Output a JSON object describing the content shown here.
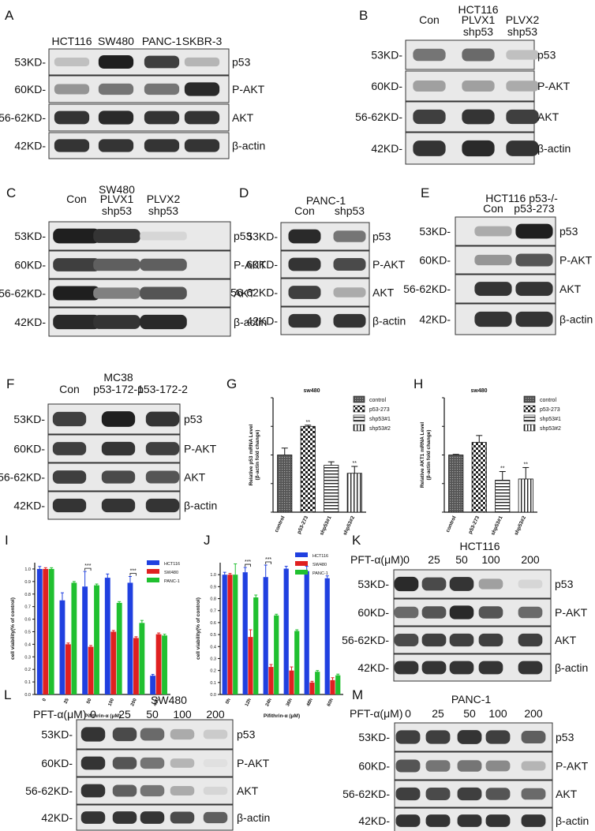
{
  "figure": {
    "panels": {
      "A": {
        "letter": "A",
        "header": [],
        "lanes": [
          "HCT116",
          "SW480",
          "PANC-1",
          "SKBR-3"
        ],
        "rows": [
          {
            "mw": "53KD-",
            "protein": "p53",
            "intensity": [
              0.2,
              0.95,
              0.8,
              0.25
            ]
          },
          {
            "mw": "60KD-",
            "protein": "P-AKT",
            "intensity": [
              0.4,
              0.55,
              0.55,
              0.9
            ]
          },
          {
            "mw": "56-62KD-",
            "protein": "AKT",
            "intensity": [
              0.85,
              0.9,
              0.85,
              0.85
            ]
          },
          {
            "mw": "42KD-",
            "protein": "β-actin",
            "intensity": [
              0.85,
              0.85,
              0.85,
              0.85
            ]
          }
        ]
      },
      "B": {
        "letter": "B",
        "header": [
          "HCT116"
        ],
        "lanes": [
          "Con",
          "PLVX1\nshp53",
          "PLVX2\nshp53"
        ],
        "rows": [
          {
            "mw": "53KD-",
            "protein": "p53",
            "intensity": [
              0.55,
              0.6,
              0.2
            ]
          },
          {
            "mw": "60KD-",
            "protein": "P-AKT",
            "intensity": [
              0.35,
              0.35,
              0.3
            ]
          },
          {
            "mw": "56-62KD-",
            "protein": "AKT",
            "intensity": [
              0.8,
              0.85,
              0.8
            ]
          },
          {
            "mw": "42KD-",
            "protein": "β-actin",
            "intensity": [
              0.85,
              0.9,
              0.85
            ]
          }
        ]
      },
      "C": {
        "letter": "C",
        "header": [
          "SW480"
        ],
        "lanes": [
          "Con",
          "PLVX1\nshp53",
          "PLVX2\nshp53"
        ],
        "rows": [
          {
            "mw": "53KD-",
            "protein": "p53",
            "intensity": [
              0.95,
              0.85,
              0.1
            ]
          },
          {
            "mw": "60KD-",
            "protein": "P-AKT",
            "intensity": [
              0.8,
              0.65,
              0.65
            ]
          },
          {
            "mw": "56-62KD-",
            "protein": "AKT",
            "intensity": [
              0.95,
              0.5,
              0.7
            ]
          },
          {
            "mw": "42KD-",
            "protein": "β-actin",
            "intensity": [
              0.9,
              0.85,
              0.9
            ]
          }
        ]
      },
      "D": {
        "letter": "D",
        "header": [
          "PANC-1"
        ],
        "lanes": [
          "Con",
          "shp53"
        ],
        "rows": [
          {
            "mw": "53KD-",
            "protein": "p53",
            "intensity": [
              0.9,
              0.55
            ]
          },
          {
            "mw": "60KD-",
            "protein": "P-AKT",
            "intensity": [
              0.85,
              0.75
            ]
          },
          {
            "mw": "56-62KD-",
            "protein": "AKT",
            "intensity": [
              0.8,
              0.3
            ]
          },
          {
            "mw": "42KD-",
            "protein": "β-actin",
            "intensity": [
              0.85,
              0.85
            ]
          }
        ]
      },
      "E": {
        "letter": "E",
        "header": [
          "HCT116 p53-/-"
        ],
        "lanes": [
          "Con",
          "p53-273"
        ],
        "rows": [
          {
            "mw": "53KD-",
            "protein": "p53",
            "intensity": [
              0.3,
              0.95
            ]
          },
          {
            "mw": "60KD-",
            "protein": "P-AKT",
            "intensity": [
              0.4,
              0.7
            ]
          },
          {
            "mw": "56-62KD-",
            "protein": "AKT",
            "intensity": [
              0.85,
              0.85
            ]
          },
          {
            "mw": "42KD-",
            "protein": "β-actin",
            "intensity": [
              0.85,
              0.85
            ]
          }
        ]
      },
      "F": {
        "letter": "F",
        "header": [
          "MC38"
        ],
        "lanes": [
          "Con",
          "p53-172-1",
          "p53-172-2"
        ],
        "rows": [
          {
            "mw": "53KD-",
            "protein": "p53",
            "intensity": [
              0.8,
              0.95,
              0.85
            ]
          },
          {
            "mw": "60KD-",
            "protein": "P-AKT",
            "intensity": [
              0.8,
              0.85,
              0.8
            ]
          },
          {
            "mw": "56-62KD-",
            "protein": "AKT",
            "intensity": [
              0.8,
              0.75,
              0.7
            ]
          },
          {
            "mw": "42KD-",
            "protein": "β-actin",
            "intensity": [
              0.85,
              0.85,
              0.85
            ]
          }
        ]
      },
      "K": {
        "letter": "K",
        "header": [
          "HCT116"
        ],
        "pft_label": "PFT-α(μM)",
        "lanes": [
          "0",
          "25",
          "50",
          "100",
          "200"
        ],
        "rows": [
          {
            "mw": "53KD-",
            "protein": "p53",
            "intensity": [
              0.9,
              0.75,
              0.85,
              0.35,
              0.1
            ]
          },
          {
            "mw": "60KD-",
            "protein": "P-AKT",
            "intensity": [
              0.6,
              0.7,
              0.9,
              0.7,
              0.6
            ]
          },
          {
            "mw": "56-62KD-",
            "protein": "AKT",
            "intensity": [
              0.75,
              0.8,
              0.8,
              0.8,
              0.8
            ]
          },
          {
            "mw": "42KD-",
            "protein": "β-actin",
            "intensity": [
              0.85,
              0.85,
              0.85,
              0.85,
              0.85
            ]
          }
        ]
      },
      "L": {
        "letter": "L",
        "header": [
          "SW480"
        ],
        "pft_label": "PFT-α(μM)",
        "lanes": [
          "0",
          "25",
          "50",
          "100",
          "200"
        ],
        "rows": [
          {
            "mw": "53KD-",
            "protein": "p53",
            "intensity": [
              0.85,
              0.75,
              0.6,
              0.3,
              0.15
            ]
          },
          {
            "mw": "60KD-",
            "protein": "P-AKT",
            "intensity": [
              0.85,
              0.7,
              0.55,
              0.25,
              0.05
            ]
          },
          {
            "mw": "56-62KD-",
            "protein": "AKT",
            "intensity": [
              0.85,
              0.65,
              0.55,
              0.3,
              0.1
            ]
          },
          {
            "mw": "42KD-",
            "protein": "β-actin",
            "intensity": [
              0.85,
              0.85,
              0.85,
              0.75,
              0.65
            ]
          }
        ]
      },
      "M": {
        "letter": "M",
        "header": [
          "PANC-1"
        ],
        "pft_label": "PFT-α(μM)",
        "lanes": [
          "0",
          "25",
          "50",
          "100",
          "200"
        ],
        "rows": [
          {
            "mw": "53KD-",
            "protein": "p53",
            "intensity": [
              0.8,
              0.8,
              0.85,
              0.8,
              0.65
            ]
          },
          {
            "mw": "60KD-",
            "protein": "P-AKT",
            "intensity": [
              0.7,
              0.55,
              0.55,
              0.45,
              0.25
            ]
          },
          {
            "mw": "56-62KD-",
            "protein": "AKT",
            "intensity": [
              0.8,
              0.75,
              0.8,
              0.7,
              0.6
            ]
          },
          {
            "mw": "42KD-",
            "protein": "β-actin",
            "intensity": [
              0.85,
              0.85,
              0.85,
              0.85,
              0.85
            ]
          }
        ]
      }
    }
  },
  "chart_data": [
    {
      "id": "G",
      "letter": "G",
      "type": "bar",
      "title": "sw480",
      "ylabel": "Relative p53 mRNA Level\n(β-actin fold change)",
      "categories": [
        "control",
        "p53-273",
        "shp53#1",
        "shp53#2"
      ],
      "values": [
        1.0,
        1.5,
        0.82,
        0.68
      ],
      "errors": [
        0.12,
        0.02,
        0.06,
        0.12
      ],
      "significance": [
        "",
        "**",
        "",
        "**"
      ],
      "ylim": [
        0,
        2
      ],
      "legend": [
        "control",
        "p53-273",
        "shp53#1",
        "shp53#2"
      ],
      "legend_position": "top-right"
    },
    {
      "id": "H",
      "letter": "H",
      "type": "bar",
      "title": "sw480",
      "ylabel": "Relative AKT1 mRNA Level\n(β-actin fold change)",
      "categories": [
        "control",
        "p53-273",
        "shp53#1",
        "shp53#2"
      ],
      "values": [
        1.0,
        1.22,
        0.56,
        0.58
      ],
      "errors": [
        0.01,
        0.12,
        0.15,
        0.2
      ],
      "significance": [
        "",
        "",
        "**",
        "**"
      ],
      "ylim": [
        0,
        2
      ],
      "legend": [
        "control",
        "p53-273",
        "shp53#1",
        "shp53#2"
      ],
      "legend_position": "top-right"
    },
    {
      "id": "I",
      "letter": "I",
      "type": "bar",
      "ylabel": "cell viability(% of control)",
      "xlabel": "Pifithrin-α (μM)",
      "categories": [
        "0",
        "25",
        "50",
        "100",
        "200",
        "400"
      ],
      "yticks": [
        "0.0",
        "0.1",
        "0.2",
        "0.3",
        "0.4",
        "0.5",
        "0.6",
        "0.7",
        "0.8",
        "0.9",
        "1.0"
      ],
      "ylim": [
        0,
        1.05
      ],
      "series": [
        {
          "name": "HCT116",
          "color": "#2040e0",
          "values": [
            1.0,
            0.75,
            0.86,
            0.93,
            0.89,
            0.15
          ],
          "errors": [
            0.02,
            0.06,
            0.12,
            0.03,
            0.05,
            0.01
          ]
        },
        {
          "name": "SW480",
          "color": "#e02020",
          "values": [
            1.0,
            0.4,
            0.38,
            0.5,
            0.45,
            0.48
          ],
          "errors": [
            0.01,
            0.01,
            0.01,
            0.01,
            0.01,
            0.01
          ]
        },
        {
          "name": "PANC-1",
          "color": "#20c030",
          "values": [
            1.0,
            0.89,
            0.87,
            0.73,
            0.57,
            0.47
          ],
          "errors": [
            0.01,
            0.01,
            0.01,
            0.01,
            0.02,
            0.01
          ]
        }
      ],
      "significance": [
        {
          "category": "50",
          "label": "***"
        },
        {
          "category": "200",
          "label": "***"
        }
      ],
      "legend_position": "top-right"
    },
    {
      "id": "J",
      "letter": "J",
      "type": "bar",
      "ylabel": "cell viability(% of control)",
      "xlabel": "Pifithrin-α (μM)",
      "categories": [
        "0h",
        "12h",
        "24h",
        "36h",
        "48h",
        "60h"
      ],
      "yticks": [
        "0.0",
        "0.1",
        "0.2",
        "0.3",
        "0.4",
        "0.5",
        "0.6",
        "0.7",
        "0.8",
        "0.9",
        "1.0"
      ],
      "ylim": [
        0,
        1.1
      ],
      "series": [
        {
          "name": "HCT116",
          "color": "#2040e0",
          "values": [
            1.0,
            1.02,
            0.98,
            1.05,
            1.03,
            0.97
          ],
          "errors": [
            0.02,
            0.04,
            0.1,
            0.02,
            0.04,
            0.02
          ]
        },
        {
          "name": "SW480",
          "color": "#e02020",
          "values": [
            1.0,
            0.48,
            0.23,
            0.2,
            0.1,
            0.12
          ],
          "errors": [
            0.01,
            0.06,
            0.02,
            0.03,
            0.01,
            0.02
          ]
        },
        {
          "name": "PANC-1",
          "color": "#20c030",
          "values": [
            1.0,
            0.81,
            0.66,
            0.53,
            0.19,
            0.16
          ],
          "errors": [
            0.09,
            0.02,
            0.01,
            0.01,
            0.01,
            0.01
          ]
        }
      ],
      "significance": [
        {
          "category": "12h",
          "label": "***"
        },
        {
          "category": "24h",
          "label": "***"
        }
      ],
      "legend_position": "top-right"
    }
  ]
}
